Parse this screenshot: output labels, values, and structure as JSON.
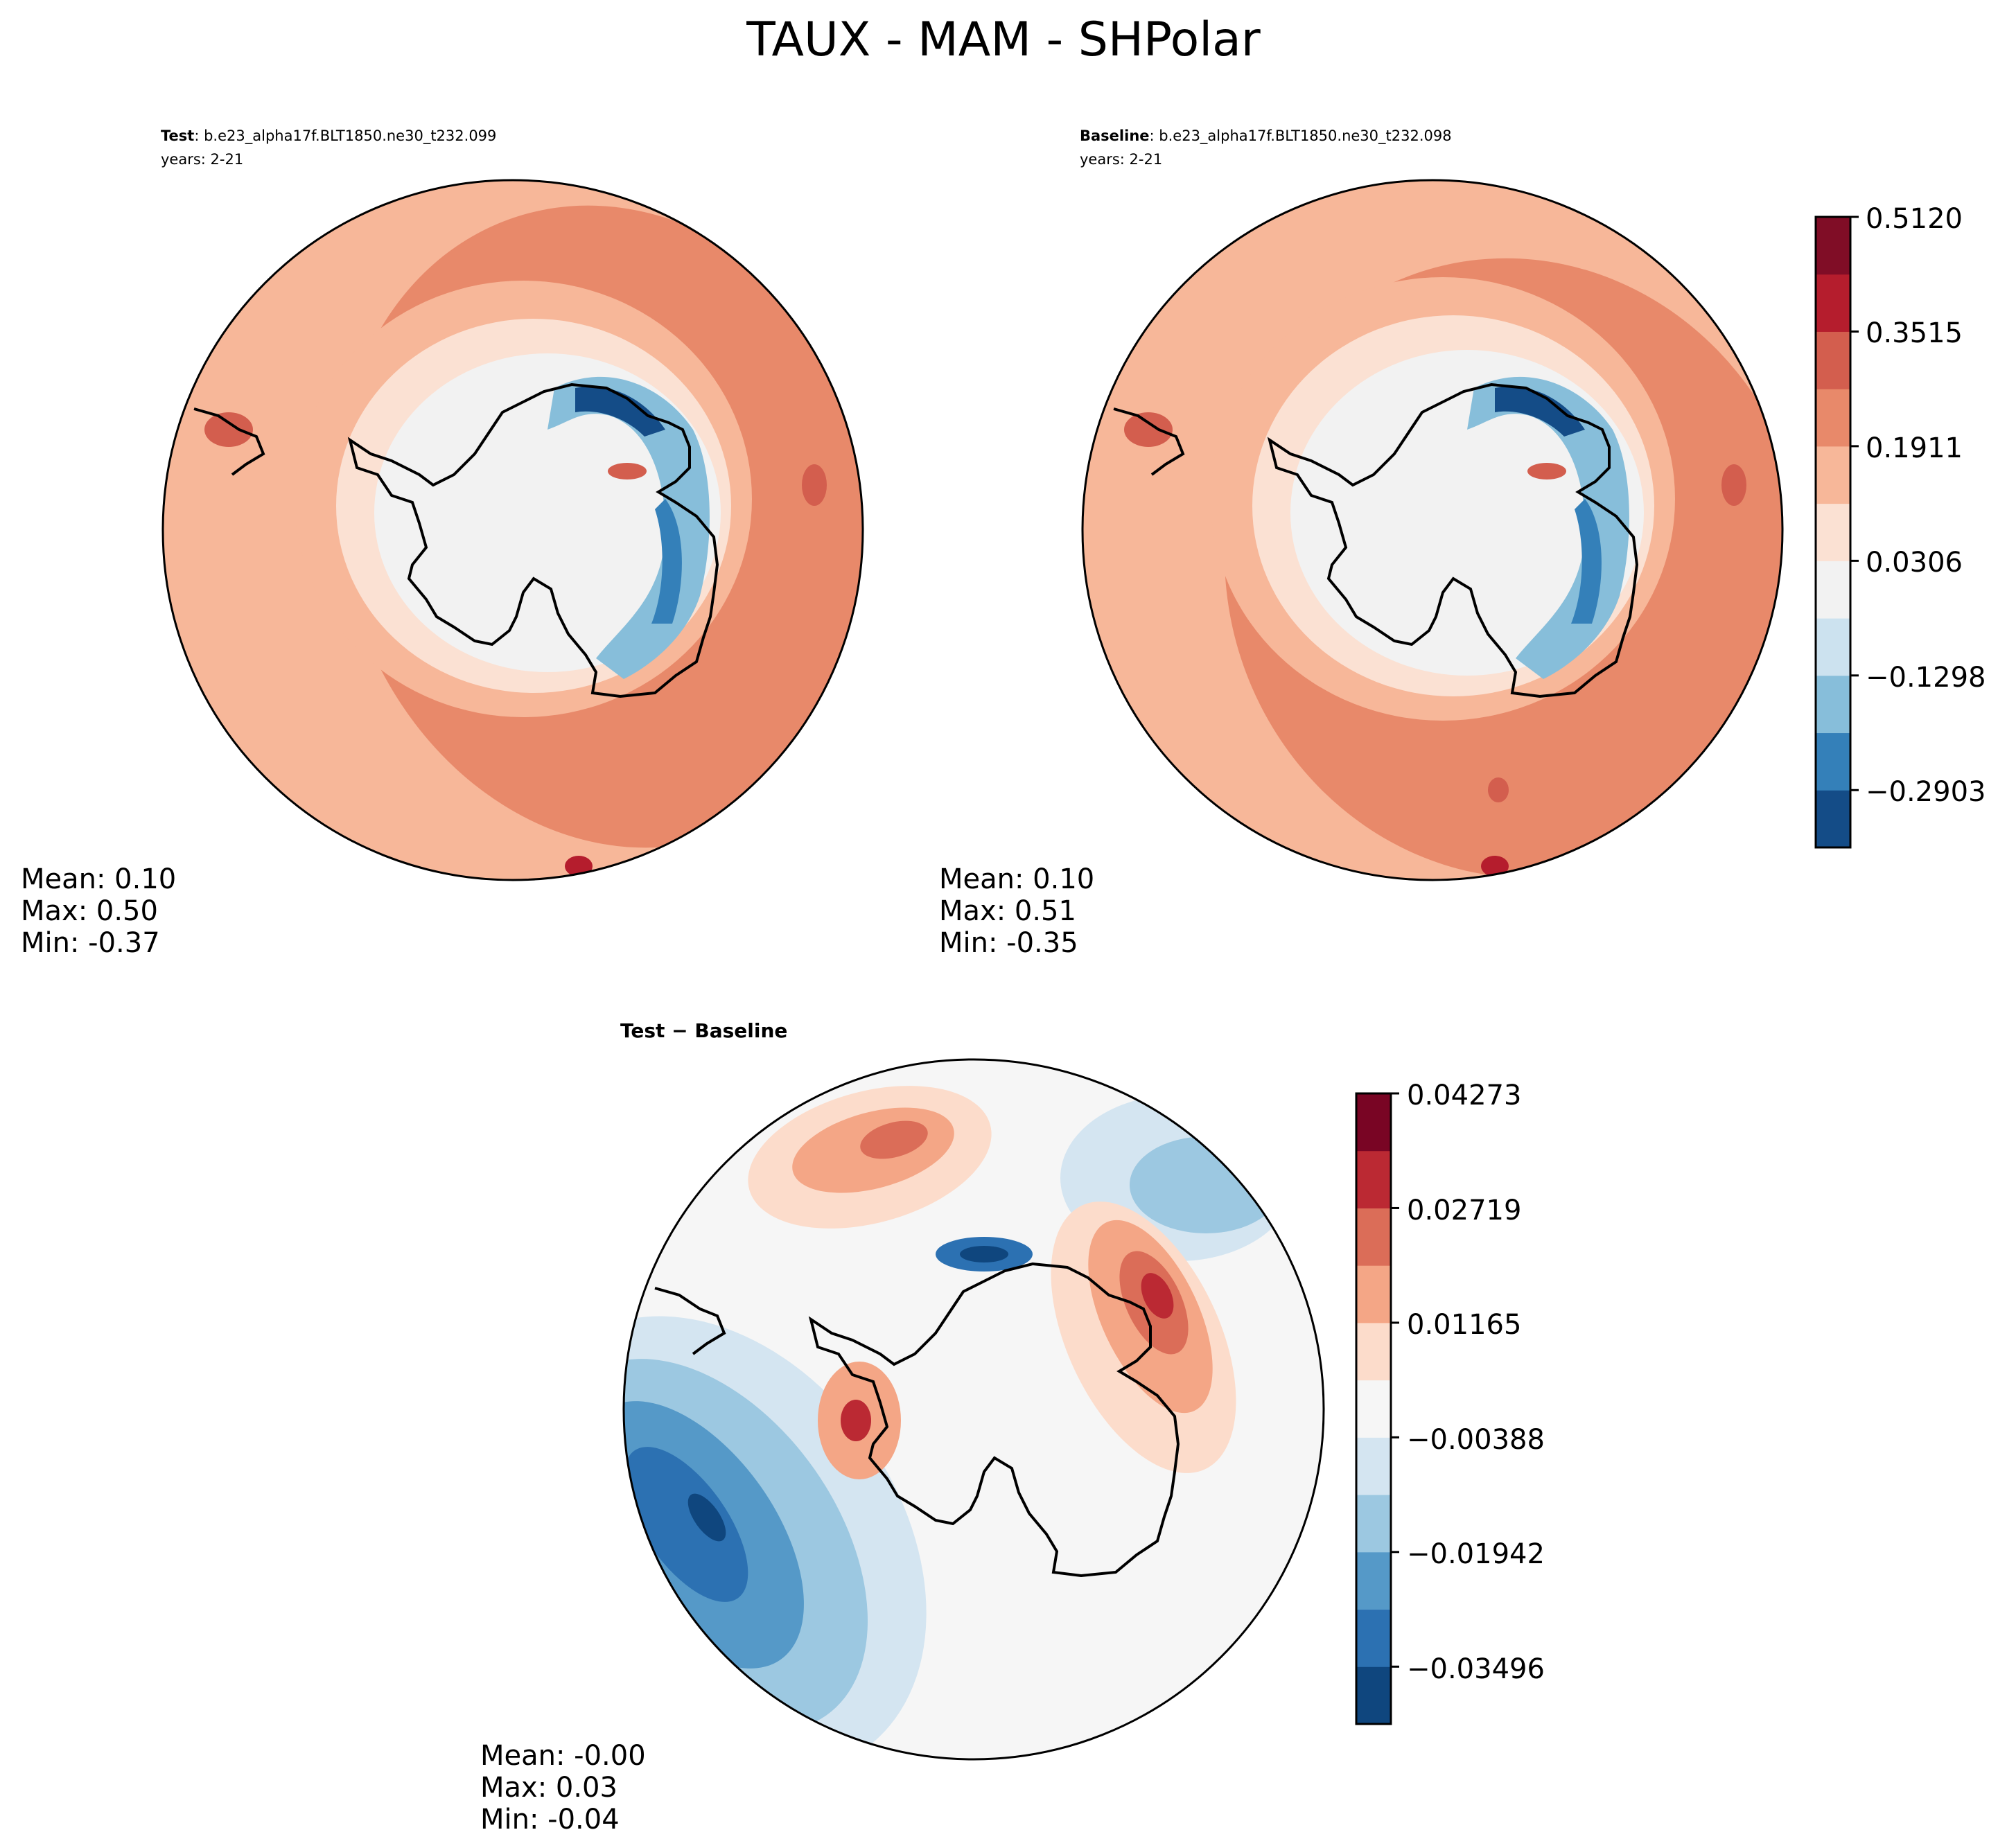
{
  "figure_title": "TAUX - MAM - SHPolar",
  "panels": [
    {
      "id": "test",
      "title_bold": "Test",
      "title_sep": ": ",
      "title_case": "b.e23_alpha17f.BLT1850.ne30_t232.099",
      "title_years": "years: 2-21",
      "stats": {
        "mean": "Mean:  0.10",
        "max": "Max:  0.50",
        "min": "Min: -0.37"
      }
    },
    {
      "id": "baseline",
      "title_bold": "Baseline",
      "title_sep": ": ",
      "title_case": "b.e23_alpha17f.BLT1850.ne30_t232.098",
      "title_years": "years: 2-21",
      "stats": {
        "mean": "Mean:  0.10",
        "max": "Max:  0.51",
        "min": "Min: -0.35"
      }
    },
    {
      "id": "diff",
      "title_bold": "Test − Baseline",
      "stats": {
        "mean": "Mean: -0.00",
        "max": "Max:  0.03",
        "min": "Min: -0.04"
      }
    }
  ],
  "colorbars": [
    {
      "id": "main",
      "tick_labels": [
        "0.5120",
        "0.3515",
        "0.1911",
        "0.0306",
        "−0.1298",
        "−0.2903"
      ],
      "colors": [
        "#144c87",
        "#3480b9",
        "#87beda",
        "#cce2ef",
        "#f2f2f2",
        "#fbe1d3",
        "#f7b799",
        "#e8896a",
        "#d35e4e",
        "#b51d2d",
        "#800d26"
      ]
    },
    {
      "id": "diff",
      "tick_labels": [
        "0.04273",
        "0.02719",
        "0.01165",
        "−0.00388",
        "−0.01942",
        "−0.03496"
      ],
      "colors": [
        "#0f467e",
        "#2c71b2",
        "#5599c8",
        "#9cc8e1",
        "#d4e5f1",
        "#f6f6f6",
        "#fcdccb",
        "#f4a686",
        "#db6d58",
        "#bb2933",
        "#790524"
      ]
    }
  ],
  "chart_data": {
    "type": "polar_contour",
    "title": "TAUX - MAM - SHPolar",
    "projection": "south polar stereographic",
    "maps": [
      {
        "name": "Test",
        "case": "b.e23_alpha17f.BLT1850.ne30_t232.099",
        "years": "2-21",
        "mean": 0.1,
        "max": 0.5,
        "min": -0.37,
        "levels": [
          -0.3705,
          -0.2903,
          -0.2101,
          -0.1298,
          -0.0496,
          0.0306,
          0.1109,
          0.1911,
          0.2713,
          0.3515,
          0.4318,
          0.512
        ],
        "field_pattern": "positive ring over Southern Ocean, negative coastal band around Antarctica"
      },
      {
        "name": "Baseline",
        "case": "b.e23_alpha17f.BLT1850.ne30_t232.098",
        "years": "2-21",
        "mean": 0.1,
        "max": 0.51,
        "min": -0.35,
        "levels": [
          -0.3705,
          -0.2903,
          -0.2101,
          -0.1298,
          -0.0496,
          0.0306,
          0.1109,
          0.1911,
          0.2713,
          0.3515,
          0.4318,
          0.512
        ],
        "field_pattern": "positive ring over Southern Ocean, negative coastal band around Antarctica"
      },
      {
        "name": "Test − Baseline",
        "mean": -0.0,
        "max": 0.03,
        "min": -0.04,
        "levels": [
          -0.0505,
          -0.03496,
          -0.02719,
          -0.01942,
          -0.01165,
          -0.00388,
          0.00388,
          0.01165,
          0.01942,
          0.02719,
          0.03496,
          0.04273
        ],
        "field_pattern": "negative lobe in Pacific sector, positive lobes east of Antarctica"
      }
    ],
    "colorbars": [
      {
        "ticks": [
          0.512,
          0.3515,
          0.1911,
          0.0306,
          -0.1298,
          -0.2903
        ]
      },
      {
        "ticks": [
          0.04273,
          0.02719,
          0.01165,
          -0.00388,
          -0.01942,
          -0.03496
        ]
      }
    ]
  }
}
